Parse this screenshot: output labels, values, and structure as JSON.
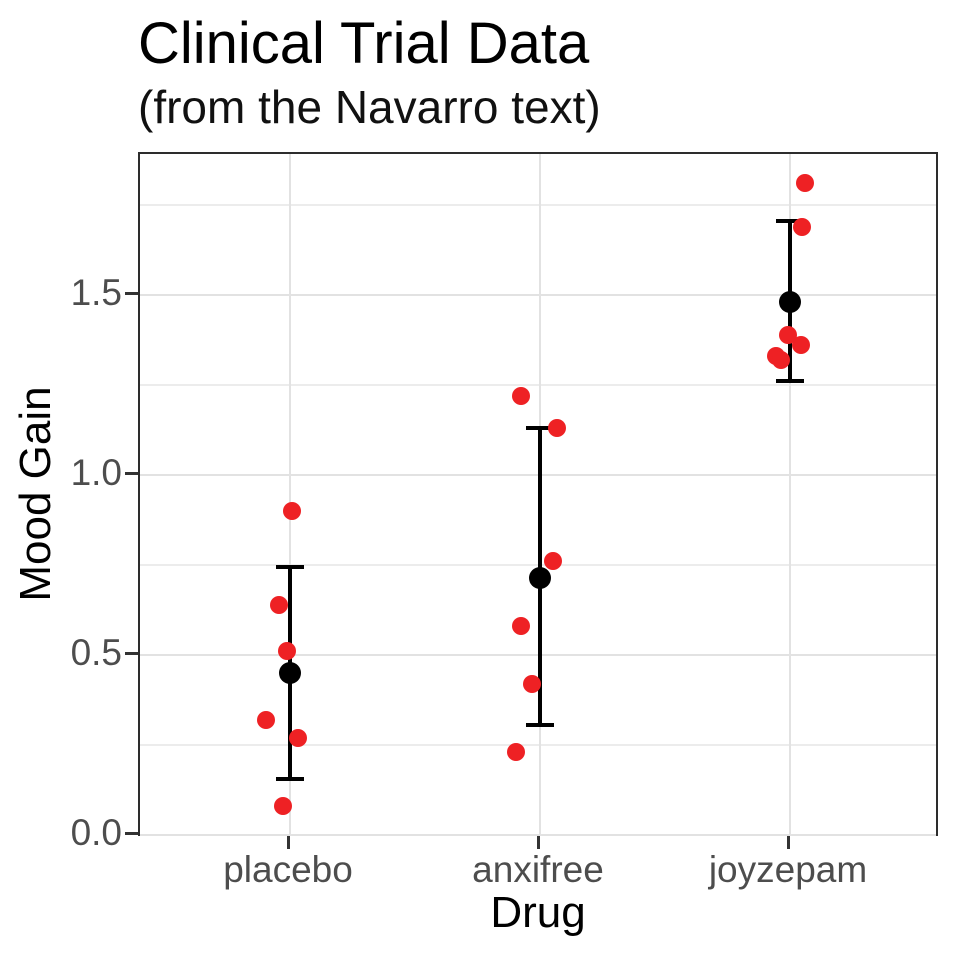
{
  "title": "Clinical Trial Data",
  "subtitle": "(from the Navarro text)",
  "x_axis": {
    "label": "Drug",
    "categories": [
      "placebo",
      "anxifree",
      "joyzepam"
    ]
  },
  "y_axis": {
    "label": "Mood Gain",
    "tick_labels": [
      "0.0",
      "0.5",
      "1.0",
      "1.5"
    ],
    "tick_values": [
      0,
      0.5,
      1.0,
      1.5
    ],
    "minor_values": [
      0.25,
      0.75,
      1.25,
      1.75
    ],
    "range": [
      -0.01,
      1.9
    ]
  },
  "colors": {
    "point_red": "#ee2124",
    "mean_black": "#000000",
    "grid_major": "#e2e2e2",
    "grid_minor": "#ececec",
    "panel_border": "#2d2d2d",
    "tick_label": "#4d4d4d",
    "axis_title": "#000000"
  },
  "chart_data": {
    "type": "scatter",
    "title": "Clinical Trial Data",
    "subtitle": "(from the Navarro text)",
    "xlabel": "Drug",
    "ylabel": "Mood Gain",
    "ylim": [
      0,
      1.9
    ],
    "grid": true,
    "legend": "none",
    "categories": [
      "placebo",
      "anxifree",
      "joyzepam"
    ],
    "groups": [
      {
        "name": "placebo",
        "mean": 0.45,
        "ci_low": 0.155,
        "ci_high": 0.745,
        "points": [
          {
            "dx": 2,
            "y": 0.9
          },
          {
            "dx": -11,
            "y": 0.64
          },
          {
            "dx": -3,
            "y": 0.51
          },
          {
            "dx": -24,
            "y": 0.32
          },
          {
            "dx": 8,
            "y": 0.27
          },
          {
            "dx": -7,
            "y": 0.08
          }
        ]
      },
      {
        "name": "anxifree",
        "mean": 0.715,
        "ci_low": 0.305,
        "ci_high": 1.13,
        "points": [
          {
            "dx": -19,
            "y": 1.22
          },
          {
            "dx": 17,
            "y": 1.13
          },
          {
            "dx": 13,
            "y": 0.76
          },
          {
            "dx": -19,
            "y": 0.58
          },
          {
            "dx": -8,
            "y": 0.42
          },
          {
            "dx": -24,
            "y": 0.23
          }
        ]
      },
      {
        "name": "joyzepam",
        "mean": 1.48,
        "ci_low": 1.26,
        "ci_high": 1.705,
        "points": [
          {
            "dx": 15,
            "y": 1.81
          },
          {
            "dx": 12,
            "y": 1.69
          },
          {
            "dx": -2,
            "y": 1.39
          },
          {
            "dx": 11,
            "y": 1.36
          },
          {
            "dx": -14,
            "y": 1.33
          },
          {
            "dx": -9,
            "y": 1.32
          }
        ]
      }
    ]
  }
}
